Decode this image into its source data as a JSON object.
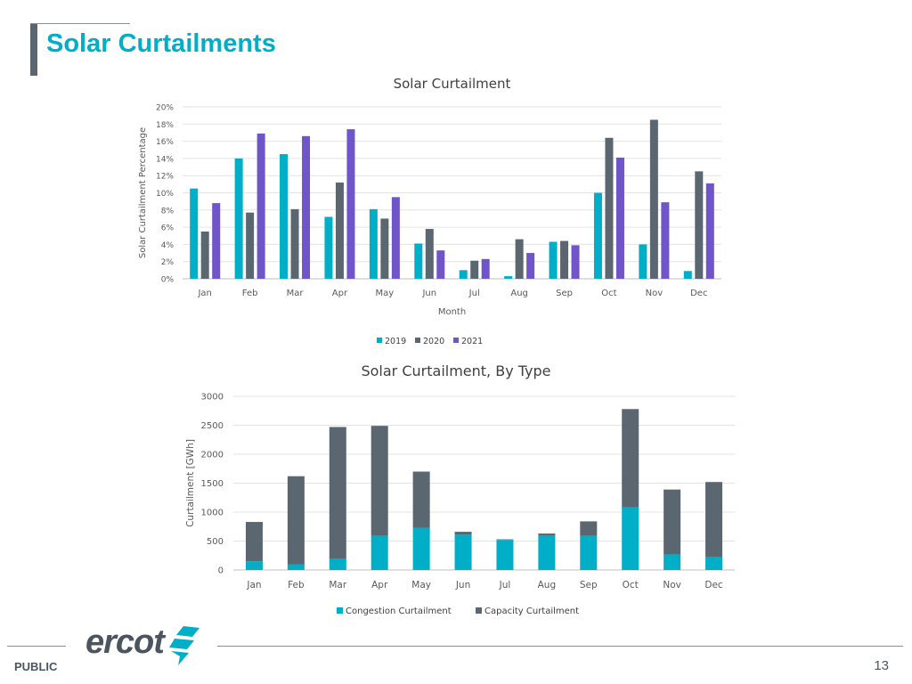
{
  "slide": {
    "title": "Solar Curtailments",
    "footer_label": "PUBLIC",
    "page_number": "13",
    "logo_text": "ercot"
  },
  "colors": {
    "title": "#00aec7",
    "teal": "#00aec7",
    "gray": "#5b6770",
    "purple": "#6f55c9"
  },
  "chart_data": [
    {
      "type": "bar",
      "title": "Solar Curtailment",
      "xlabel": "Month",
      "ylabel": "Solar Curtailment Percentage",
      "categories": [
        "Jan",
        "Feb",
        "Mar",
        "Apr",
        "May",
        "Jun",
        "Jul",
        "Aug",
        "Sep",
        "Oct",
        "Nov",
        "Dec"
      ],
      "ylim": [
        0,
        20
      ],
      "yticks": [
        "0%",
        "2%",
        "4%",
        "6%",
        "8%",
        "10%",
        "12%",
        "14%",
        "16%",
        "18%",
        "20%"
      ],
      "grid": true,
      "legend": "bottom",
      "series": [
        {
          "name": "2019",
          "color": "#00aec7",
          "values": [
            10.5,
            14.0,
            14.5,
            7.2,
            8.1,
            4.1,
            1.0,
            0.3,
            4.3,
            10.0,
            4.0,
            0.9
          ]
        },
        {
          "name": "2020",
          "color": "#5b6770",
          "values": [
            5.5,
            7.7,
            8.1,
            11.2,
            7.0,
            5.8,
            2.1,
            4.6,
            4.4,
            16.4,
            18.5,
            12.5
          ]
        },
        {
          "name": "2021",
          "color": "#6f55c9",
          "values": [
            8.8,
            16.9,
            16.6,
            17.4,
            9.5,
            3.3,
            2.3,
            3.0,
            3.9,
            14.1,
            8.9,
            11.1
          ]
        }
      ]
    },
    {
      "type": "bar",
      "stacked": true,
      "title": "Solar Curtailment, By Type",
      "xlabel": "",
      "ylabel": "Curtailment [GWh]",
      "categories": [
        "Jan",
        "Feb",
        "Mar",
        "Apr",
        "May",
        "Jun",
        "Jul",
        "Aug",
        "Sep",
        "Oct",
        "Nov",
        "Dec"
      ],
      "ylim": [
        0,
        3000
      ],
      "yticks": [
        "0",
        "500",
        "1000",
        "1500",
        "2000",
        "2500",
        "3000"
      ],
      "grid": true,
      "legend": "bottom",
      "series": [
        {
          "name": "Congestion Curtailment",
          "color": "#00aec7",
          "values": [
            150,
            100,
            200,
            590,
            730,
            610,
            520,
            600,
            590,
            1080,
            270,
            220
          ]
        },
        {
          "name": "Capacity Curtailment",
          "color": "#5b6770",
          "values": [
            680,
            1520,
            2270,
            1900,
            970,
            50,
            10,
            30,
            250,
            1700,
            1120,
            1300
          ]
        }
      ]
    }
  ]
}
